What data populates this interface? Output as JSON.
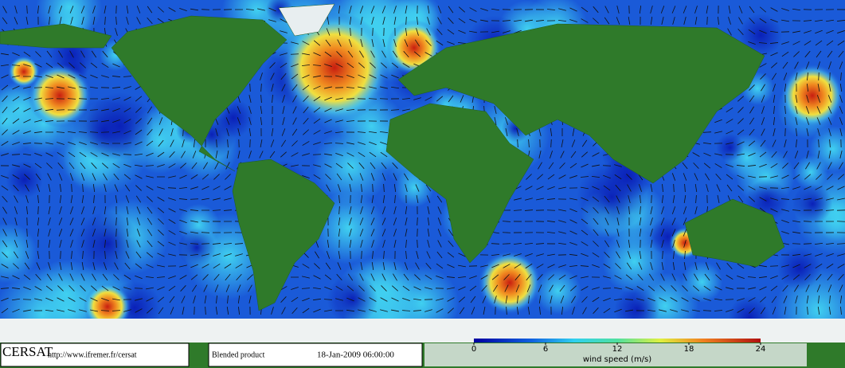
{
  "footer": {
    "logo": "CERSAT",
    "url": "http://www.ifremer.fr/cersat",
    "product": "Blended product",
    "date": "18-Jan-2009 06:00:00"
  },
  "colorbar": {
    "label": "wind speed (m/s)",
    "lim": [
      0,
      24
    ],
    "ticks": [
      0,
      6,
      12,
      18,
      24
    ]
  }
}
